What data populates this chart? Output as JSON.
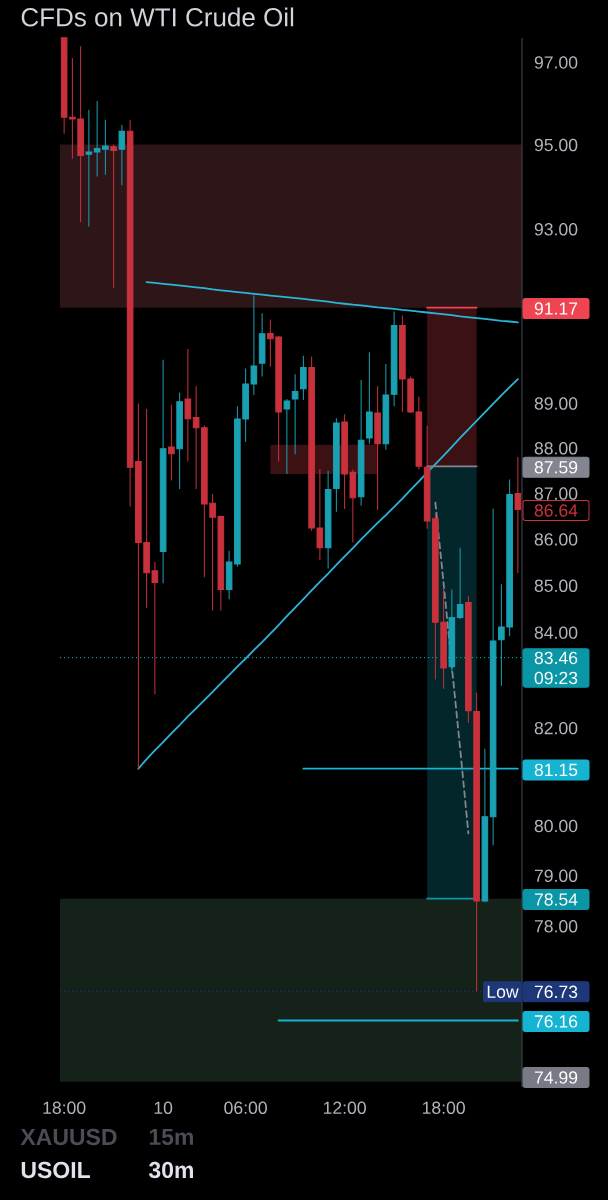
{
  "chart_data": {
    "type": "candlestick",
    "title": "CFDs on WTI Crude Oil",
    "categories": [
      "18:00",
      null,
      null,
      null,
      null,
      null,
      null,
      null,
      null,
      null,
      null,
      null,
      "10",
      null,
      null,
      null,
      null,
      null,
      null,
      null,
      null,
      null,
      "06:00",
      null,
      null,
      null,
      null,
      null,
      null,
      null,
      null,
      null,
      null,
      null,
      "12:00",
      null,
      null,
      null,
      null,
      null,
      null,
      null,
      null,
      null,
      null,
      null,
      "18:00",
      null,
      null,
      null,
      null,
      null,
      null,
      null,
      null,
      null
    ],
    "ohlc": [
      [
        97.6,
        97.6,
        95.26,
        95.66
      ],
      [
        95.66,
        97.1,
        94.66,
        95.62
      ],
      [
        95.62,
        97.39,
        93.16,
        94.74
      ],
      [
        94.77,
        95.84,
        93.06,
        94.82
      ],
      [
        94.82,
        96.05,
        94.24,
        94.91
      ],
      [
        94.89,
        95.6,
        94.28,
        94.97
      ],
      [
        94.95,
        95.0,
        91.63,
        94.86
      ],
      [
        94.89,
        95.48,
        94.03,
        95.32
      ],
      [
        95.32,
        95.6,
        86.71,
        87.57
      ],
      [
        87.7,
        88.99,
        81.15,
        85.92
      ],
      [
        85.92,
        88.87,
        84.52,
        85.27
      ],
      [
        85.31,
        85.5,
        82.69,
        85.06
      ],
      [
        85.73,
        89.98,
        85.04,
        87.98
      ],
      [
        88.02,
        88.96,
        87.28,
        87.87
      ],
      [
        87.98,
        89.23,
        87.09,
        89.03
      ],
      [
        89.09,
        90.22,
        87.7,
        88.65
      ],
      [
        88.68,
        89.38,
        87.09,
        88.45
      ],
      [
        88.45,
        88.5,
        85.17,
        86.76
      ],
      [
        86.78,
        86.98,
        84.46,
        86.47
      ],
      [
        86.49,
        86.51,
        84.46,
        84.91
      ],
      [
        84.91,
        85.74,
        84.7,
        85.5
      ],
      [
        85.46,
        88.93,
        85.4,
        88.64
      ],
      [
        88.64,
        89.78,
        88.13,
        89.43
      ],
      [
        89.43,
        91.45,
        89.18,
        89.84
      ],
      [
        89.9,
        91.04,
        89.6,
        90.57
      ],
      [
        90.58,
        90.9,
        89.82,
        90.46
      ],
      [
        90.5,
        90.52,
        87.7,
        88.8
      ],
      [
        88.87,
        89.09,
        87.42,
        89.05
      ],
      [
        89.09,
        89.65,
        87.86,
        89.26
      ],
      [
        89.32,
        90.07,
        89.07,
        89.8
      ],
      [
        89.8,
        90.05,
        86.17,
        86.24
      ],
      [
        86.24,
        87.53,
        85.54,
        85.81
      ],
      [
        85.81,
        87.49,
        85.36,
        87.08
      ],
      [
        87.1,
        88.66,
        86.59,
        88.55
      ],
      [
        88.58,
        88.75,
        86.65,
        87.42
      ],
      [
        87.46,
        87.52,
        85.92,
        86.9
      ],
      [
        86.92,
        89.52,
        86.72,
        88.17
      ],
      [
        88.22,
        90.15,
        88.09,
        88.8
      ],
      [
        88.78,
        89.38,
        86.63,
        88.09
      ],
      [
        88.09,
        89.88,
        87.96,
        89.18
      ],
      [
        89.2,
        91.08,
        88.93,
        90.76
      ],
      [
        90.76,
        90.99,
        88.8,
        89.54
      ],
      [
        89.54,
        89.6,
        88.78,
        88.8
      ],
      [
        88.8,
        89.14,
        87.52,
        87.59
      ],
      [
        87.57,
        88.49,
        86.22,
        86.39
      ],
      [
        86.44,
        86.56,
        83.0,
        84.21
      ],
      [
        84.21,
        84.95,
        82.81,
        83.24
      ],
      [
        83.27,
        84.91,
        83.14,
        84.31
      ],
      [
        84.31,
        85.81,
        84.28,
        84.59
      ],
      [
        84.63,
        84.77,
        82.1,
        82.35
      ],
      [
        82.33,
        82.72,
        76.73,
        78.49
      ],
      [
        78.49,
        81.56,
        78.47,
        80.17
      ],
      [
        80.17,
        86.66,
        79.61,
        83.81
      ],
      [
        83.84,
        85.02,
        82.87,
        84.11
      ],
      [
        84.11,
        87.3,
        83.91,
        86.97
      ],
      [
        86.99,
        87.8,
        85.26,
        86.64
      ]
    ],
    "colors": [
      "#c8323c",
      "#c8323c",
      "#c8323c",
      "#1aa0b2",
      "#1aa0b2",
      "#1aa0b2",
      "#c8323c",
      "#1aa0b2",
      "#c8323c",
      "#c8323c",
      "#c8323c",
      "#c8323c",
      "#1aa0b2",
      "#c8323c",
      "#1aa0b2",
      "#c8323c",
      "#c8323c",
      "#c8323c",
      "#c8323c",
      "#c8323c",
      "#1aa0b2",
      "#1aa0b2",
      "#1aa0b2",
      "#1aa0b2",
      "#1aa0b2",
      "#c8323c",
      "#c8323c",
      "#1aa0b2",
      "#1aa0b2",
      "#1aa0b2",
      "#c8323c",
      "#c8323c",
      "#1aa0b2",
      "#1aa0b2",
      "#c8323c",
      "#c8323c",
      "#1aa0b2",
      "#1aa0b2",
      "#c8323c",
      "#1aa0b2",
      "#1aa0b2",
      "#c8323c",
      "#c8323c",
      "#c8323c",
      "#c8323c",
      "#c8323c",
      "#c8323c",
      "#1aa0b2",
      "#1aa0b2",
      "#c8323c",
      "#c8323c",
      "#1aa0b2",
      "#1aa0b2",
      "#1aa0b2",
      "#1aa0b2",
      "#c8323c"
    ],
    "value_labels": [
      null,
      null,
      null,
      null,
      null,
      null,
      null,
      null,
      null,
      null,
      null,
      null,
      null,
      null,
      null,
      null,
      null,
      null,
      null,
      null,
      null,
      null,
      null,
      null,
      null,
      null,
      null,
      null,
      null,
      null,
      null,
      null,
      null,
      null,
      null,
      null,
      null,
      null,
      null,
      null,
      null,
      null,
      null,
      null,
      null,
      null,
      null,
      null,
      null,
      null,
      null,
      null,
      null,
      null,
      null,
      "86.64"
    ],
    "series": [
      {
        "type": "line",
        "color": "#29b6d8",
        "values": [
          null,
          null,
          null,
          null,
          null,
          null,
          null,
          null,
          null,
          null,
          91.76,
          91.74,
          91.72,
          91.7,
          91.68,
          91.66,
          91.64,
          91.62,
          91.59,
          91.57,
          91.55,
          91.53,
          91.51,
          91.49,
          91.47,
          91.45,
          91.43,
          91.41,
          91.39,
          91.37,
          91.35,
          91.33,
          91.31,
          91.28,
          91.26,
          91.24,
          91.22,
          91.2,
          91.18,
          91.16,
          91.14,
          91.12,
          91.1,
          91.08,
          91.06,
          91.04,
          91.02,
          91.0,
          90.97,
          90.95,
          90.93,
          90.91,
          90.89,
          90.87,
          90.85,
          90.83
        ]
      },
      {
        "type": "line",
        "color": "#29b6d8",
        "values": [
          null,
          null,
          null,
          null,
          null,
          null,
          null,
          null,
          null,
          81.15,
          81.35,
          81.53,
          81.7,
          81.88,
          82.05,
          82.23,
          82.4,
          82.57,
          82.74,
          82.92,
          83.09,
          83.27,
          83.44,
          83.62,
          83.79,
          83.97,
          84.15,
          84.34,
          84.52,
          84.7,
          84.89,
          85.07,
          85.25,
          85.44,
          85.62,
          85.8,
          85.99,
          86.17,
          86.35,
          86.52,
          86.7,
          86.88,
          87.07,
          87.26,
          87.45,
          87.64,
          87.83,
          88.02,
          88.22,
          88.41,
          88.6,
          88.79,
          88.98,
          89.17,
          89.36,
          89.54
        ]
      },
      {
        "type": "line",
        "color": "#14b4d2",
        "values": [
          null,
          null,
          null,
          null,
          null,
          null,
          null,
          null,
          null,
          null,
          null,
          null,
          null,
          null,
          null,
          null,
          null,
          null,
          null,
          null,
          null,
          null,
          null,
          null,
          null,
          null,
          null,
          null,
          null,
          81.15,
          81.15,
          81.15,
          81.15,
          81.15,
          81.15,
          81.15,
          81.15,
          81.15,
          81.15,
          81.15,
          81.15,
          81.15,
          81.15,
          81.15,
          81.15,
          81.15,
          81.15,
          81.15,
          81.15,
          81.15,
          81.15,
          81.15,
          81.15,
          81.15,
          81.15,
          81.15
        ],
        "value_labels": [
          null,
          null,
          null,
          null,
          null,
          null,
          null,
          null,
          null,
          null,
          null,
          null,
          null,
          null,
          null,
          null,
          null,
          null,
          null,
          null,
          null,
          null,
          null,
          null,
          null,
          null,
          null,
          null,
          null,
          null,
          null,
          null,
          null,
          null,
          null,
          null,
          null,
          null,
          null,
          null,
          null,
          null,
          null,
          null,
          null,
          null,
          null,
          null,
          null,
          null,
          null,
          null,
          null,
          null,
          null,
          "81.15"
        ]
      },
      {
        "type": "line",
        "color": "#14b4d2",
        "values": [
          null,
          null,
          null,
          null,
          null,
          null,
          null,
          null,
          null,
          null,
          null,
          null,
          null,
          null,
          null,
          null,
          null,
          null,
          null,
          null,
          null,
          null,
          null,
          null,
          null,
          null,
          76.16,
          76.16,
          76.16,
          76.16,
          76.16,
          76.16,
          76.16,
          76.16,
          76.16,
          76.16,
          76.16,
          76.16,
          76.16,
          76.16,
          76.16,
          76.16,
          76.16,
          76.16,
          76.16,
          76.16,
          76.16,
          76.16,
          76.16,
          76.16,
          76.16,
          76.16,
          76.16,
          76.16,
          76.16,
          76.16
        ],
        "value_labels": [
          null,
          null,
          null,
          null,
          null,
          null,
          null,
          null,
          null,
          null,
          null,
          null,
          null,
          null,
          null,
          null,
          null,
          null,
          null,
          null,
          null,
          null,
          null,
          null,
          null,
          null,
          null,
          null,
          null,
          null,
          null,
          null,
          null,
          null,
          null,
          null,
          null,
          null,
          null,
          null,
          null,
          null,
          null,
          null,
          null,
          null,
          null,
          null,
          null,
          null,
          null,
          null,
          null,
          null,
          null,
          "76.16"
        ]
      },
      {
        "type": "line",
        "color": "#ef4452",
        "values": [
          null,
          null,
          null,
          null,
          null,
          null,
          null,
          null,
          null,
          null,
          null,
          null,
          null,
          null,
          null,
          null,
          null,
          null,
          null,
          null,
          null,
          null,
          null,
          null,
          null,
          null,
          null,
          null,
          null,
          null,
          null,
          null,
          null,
          null,
          null,
          null,
          null,
          null,
          null,
          null,
          null,
          null,
          null,
          null,
          91.17,
          91.17,
          91.17,
          91.17,
          91.17,
          91.17,
          91.17,
          null,
          null,
          null,
          null,
          null
        ],
        "lower": [
          null,
          null,
          null,
          null,
          null,
          null,
          null,
          null,
          null,
          null,
          null,
          null,
          null,
          null,
          null,
          null,
          null,
          null,
          null,
          null,
          null,
          null,
          null,
          null,
          null,
          null,
          null,
          null,
          null,
          null,
          null,
          null,
          null,
          null,
          null,
          null,
          null,
          null,
          null,
          null,
          null,
          null,
          null,
          null,
          87.59,
          87.59,
          87.59,
          87.59,
          87.59,
          87.59,
          87.59,
          null,
          null,
          null,
          null,
          null
        ],
        "upper": [
          null,
          null,
          null,
          null,
          null,
          null,
          null,
          null,
          null,
          null,
          null,
          null,
          null,
          null,
          null,
          null,
          null,
          null,
          null,
          null,
          null,
          null,
          null,
          null,
          null,
          null,
          null,
          null,
          null,
          null,
          null,
          null,
          null,
          null,
          null,
          null,
          null,
          null,
          null,
          null,
          null,
          null,
          null,
          null,
          91.17,
          91.17,
          91.17,
          91.17,
          91.17,
          91.17,
          91.17,
          null,
          null,
          null,
          null,
          null
        ]
      },
      {
        "type": "line",
        "color": "#0a96a5",
        "values": [
          null,
          null,
          null,
          null,
          null,
          null,
          null,
          null,
          null,
          null,
          null,
          null,
          null,
          null,
          null,
          null,
          null,
          null,
          null,
          null,
          null,
          null,
          null,
          null,
          null,
          null,
          null,
          null,
          null,
          null,
          null,
          null,
          null,
          null,
          null,
          null,
          null,
          null,
          null,
          null,
          null,
          null,
          null,
          null,
          78.54,
          78.54,
          78.54,
          78.54,
          78.54,
          78.54,
          78.54,
          null,
          null,
          null,
          null,
          null
        ],
        "lower": [
          null,
          null,
          null,
          null,
          null,
          null,
          null,
          null,
          null,
          null,
          null,
          null,
          null,
          null,
          null,
          null,
          null,
          null,
          null,
          null,
          null,
          null,
          null,
          null,
          null,
          null,
          null,
          null,
          null,
          null,
          null,
          null,
          null,
          null,
          null,
          null,
          null,
          null,
          null,
          null,
          null,
          null,
          null,
          null,
          78.54,
          78.54,
          78.54,
          78.54,
          78.54,
          78.54,
          78.54,
          null,
          null,
          null,
          null,
          null
        ],
        "upper": [
          null,
          null,
          null,
          null,
          null,
          null,
          null,
          null,
          null,
          null,
          null,
          null,
          null,
          null,
          null,
          null,
          null,
          null,
          null,
          null,
          null,
          null,
          null,
          null,
          null,
          null,
          null,
          null,
          null,
          null,
          null,
          null,
          null,
          null,
          null,
          null,
          null,
          null,
          null,
          null,
          null,
          null,
          null,
          null,
          87.59,
          87.59,
          87.59,
          87.59,
          87.59,
          87.59,
          87.59,
          null,
          null,
          null,
          null,
          null
        ]
      },
      {
        "type": "line",
        "color": "#838691",
        "values": [
          null,
          null,
          null,
          null,
          null,
          null,
          null,
          null,
          null,
          null,
          null,
          null,
          null,
          null,
          null,
          null,
          null,
          null,
          null,
          null,
          null,
          null,
          null,
          null,
          null,
          null,
          null,
          null,
          null,
          null,
          null,
          null,
          null,
          null,
          null,
          null,
          null,
          null,
          null,
          null,
          null,
          null,
          null,
          null,
          87.59,
          87.59,
          87.59,
          87.59,
          87.59,
          87.59,
          87.59,
          null,
          null,
          null,
          null,
          null
        ]
      },
      {
        "type": "line",
        "color": "#838691",
        "line_style": "dashed",
        "values": [
          null,
          null,
          null,
          null,
          null,
          null,
          null,
          null,
          null,
          null,
          null,
          null,
          null,
          null,
          null,
          null,
          null,
          null,
          null,
          null,
          null,
          null,
          null,
          null,
          null,
          null,
          null,
          null,
          null,
          null,
          null,
          null,
          null,
          null,
          null,
          null,
          null,
          null,
          null,
          null,
          null,
          null,
          null,
          null,
          null,
          86.79,
          85.04,
          83.27,
          81.57,
          79.85,
          null,
          null,
          null,
          null,
          null,
          null
        ]
      },
      {
        "type": "line",
        "color": "#ef4452",
        "values": [
          null,
          null,
          null,
          null,
          null,
          null,
          null,
          null,
          null,
          null,
          null,
          null,
          null,
          null,
          null,
          null,
          null,
          null,
          null,
          null,
          null,
          null,
          null,
          null,
          null,
          null,
          null,
          null,
          null,
          null,
          null,
          null,
          null,
          null,
          null,
          null,
          null,
          null,
          null,
          null,
          null,
          null,
          null,
          null,
          null,
          null,
          null,
          null,
          null,
          null,
          null,
          null,
          null,
          null,
          null,
          null
        ],
        "lower": [
          null,
          null,
          null,
          null,
          null,
          null,
          null,
          null,
          null,
          null,
          null,
          null,
          null,
          null,
          null,
          null,
          null,
          null,
          null,
          null,
          null,
          null,
          null,
          null,
          null,
          87.42,
          87.42,
          87.42,
          87.42,
          87.42,
          87.42,
          87.42,
          87.42,
          87.42,
          87.42,
          87.42,
          87.42,
          87.42,
          87.42,
          null,
          null,
          null,
          null,
          null,
          null,
          null,
          null,
          null,
          null,
          null,
          null,
          null,
          null,
          null,
          null,
          null
        ],
        "upper": [
          null,
          null,
          null,
          null,
          null,
          null,
          null,
          null,
          null,
          null,
          null,
          null,
          null,
          null,
          null,
          null,
          null,
          null,
          null,
          null,
          null,
          null,
          null,
          null,
          null,
          88.07,
          88.07,
          88.07,
          88.07,
          88.07,
          88.07,
          88.07,
          88.07,
          88.07,
          88.07,
          88.07,
          88.07,
          88.07,
          88.07,
          null,
          null,
          null,
          null,
          null,
          null,
          null,
          null,
          null,
          null,
          null,
          null,
          null,
          null,
          null,
          null,
          null
        ]
      }
    ],
    "ref_lines": [
      {
        "axis": "y",
        "value": 83.46,
        "label": "83.46 09:23",
        "line_style": "dotted",
        "color": "#0a96a5"
      },
      {
        "axis": "y",
        "value": 76.73,
        "label": "76.73",
        "line_style": "dotted",
        "color": "#1e3778"
      }
    ],
    "bands": [
      {
        "axis": "y",
        "from": 91.17,
        "to": 95.0,
        "color": "#2e1518"
      },
      {
        "axis": "y",
        "from": 74.99,
        "to": 78.54,
        "color": "#15221a",
        "label": "74.99"
      }
    ],
    "annotations": [
      {
        "text": "Low",
        "y": 76.73
      },
      "XAUUSD",
      "15m",
      "USOIL",
      "30m"
    ],
    "log": "y",
    "ylim": [
      74.9,
      97.6
    ],
    "yticks": [
      {
        "value": 97,
        "label": "97.00"
      },
      {
        "value": 95,
        "label": "95.00"
      },
      {
        "value": 93,
        "label": "93.00"
      },
      {
        "value": 91.17,
        "label": "91.17"
      },
      {
        "value": 89,
        "label": "89.00"
      },
      {
        "value": 88,
        "label": "88.00"
      },
      {
        "value": 87.59,
        "label": "87.59"
      },
      {
        "value": 87,
        "label": "87.00"
      },
      {
        "value": 86,
        "label": "86.00"
      },
      {
        "value": 85,
        "label": "85.00"
      },
      {
        "value": 84,
        "label": "84.00"
      },
      {
        "value": 82,
        "label": "82.00"
      },
      {
        "value": 80,
        "label": "80.00"
      },
      {
        "value": 79,
        "label": "79.00"
      },
      {
        "value": 78.54,
        "label": "78.54"
      },
      {
        "value": 78,
        "label": "78.00"
      }
    ]
  }
}
